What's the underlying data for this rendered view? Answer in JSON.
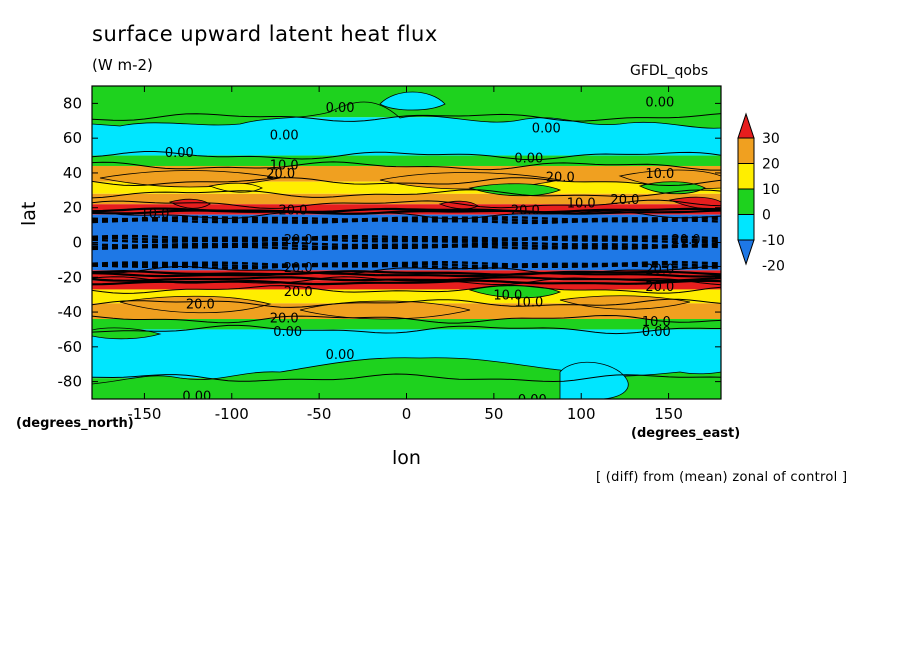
{
  "chart_data": {
    "type": "contour",
    "title": "surface upward latent heat flux",
    "units": "(W m-2)",
    "model": "GFDL_qobs",
    "xlabel": "lon",
    "ylabel": "lat",
    "x_unit_label": "(degrees_east)",
    "y_unit_label": "(degrees_north)",
    "note": "[ (diff) from (mean) zonal of control ]",
    "xlim": [
      -180,
      180
    ],
    "ylim": [
      -90,
      90
    ],
    "x_ticks": [
      -150,
      -100,
      -50,
      0,
      50,
      100,
      150
    ],
    "x_tick_labels": [
      "-150",
      "-100",
      "-50",
      "0",
      "50",
      "100",
      "150"
    ],
    "y_ticks": [
      80,
      60,
      40,
      20,
      0,
      -20,
      -40,
      -60,
      -80
    ],
    "y_tick_labels": [
      "80",
      "60",
      "40",
      "20",
      "0",
      "-20",
      "-40",
      "-60",
      "-80"
    ],
    "colorbar": {
      "levels": [
        -20,
        -10,
        0,
        10,
        20,
        30
      ],
      "level_labels": [
        "30",
        "20",
        "10",
        "0",
        "-10",
        "-20"
      ],
      "colors": [
        "#1e78e6",
        "#00e6ff",
        "#1ed21e",
        "#ffee00",
        "#f0a020",
        "#e61e1e"
      ]
    },
    "zonal_bands": [
      {
        "lat_min": 72,
        "lat_max": 90,
        "value_class": 0
      },
      {
        "lat_min": 50,
        "lat_max": 72,
        "value_class": -10
      },
      {
        "lat_min": 44,
        "lat_max": 50,
        "value_class": 0
      },
      {
        "lat_min": 35,
        "lat_max": 44,
        "value_class": 20
      },
      {
        "lat_min": 28,
        "lat_max": 35,
        "value_class": 10
      },
      {
        "lat_min": 22,
        "lat_max": 28,
        "value_class": 20
      },
      {
        "lat_min": 16,
        "lat_max": 22,
        "value_class": 30
      },
      {
        "lat_min": -16,
        "lat_max": 16,
        "value_class": -20
      },
      {
        "lat_min": -22,
        "lat_max": -16,
        "value_class": 30
      },
      {
        "lat_min": -27,
        "lat_max": -22,
        "value_class": 30
      },
      {
        "lat_min": -35,
        "lat_max": -27,
        "value_class": 10
      },
      {
        "lat_min": -44,
        "lat_max": -35,
        "value_class": 20
      },
      {
        "lat_min": -50,
        "lat_max": -44,
        "value_class": 0
      },
      {
        "lat_min": -78,
        "lat_max": -50,
        "value_class": -10
      },
      {
        "lat_min": -90,
        "lat_max": -78,
        "value_class": 0
      }
    ],
    "contour_labels": [
      {
        "text": "0.00",
        "lon": -38,
        "lat": 78
      },
      {
        "text": "0.00",
        "lon": 145,
        "lat": 81
      },
      {
        "text": "0.00",
        "lon": 80,
        "lat": 66
      },
      {
        "text": "0.00",
        "lon": -70,
        "lat": 62
      },
      {
        "text": "0.00",
        "lon": -130,
        "lat": 52
      },
      {
        "text": "0.00",
        "lon": 70,
        "lat": 49
      },
      {
        "text": "10.0",
        "lon": -70,
        "lat": 45
      },
      {
        "text": "20.0",
        "lon": -72,
        "lat": 40
      },
      {
        "text": "20.0",
        "lon": 88,
        "lat": 38
      },
      {
        "text": "10.0",
        "lon": 145,
        "lat": 40
      },
      {
        "text": "20.0",
        "lon": 125,
        "lat": 25
      },
      {
        "text": "10.0",
        "lon": 100,
        "lat": 23
      },
      {
        "text": "20.0",
        "lon": 68,
        "lat": 19
      },
      {
        "text": "10.0",
        "lon": -144,
        "lat": 17
      },
      {
        "text": "20.0",
        "lon": -65,
        "lat": 19
      },
      {
        "text": "20.0",
        "lon": -62,
        "lat": 2
      },
      {
        "text": "20.0",
        "lon": 160,
        "lat": 2
      },
      {
        "text": "20.0",
        "lon": -62,
        "lat": -14
      },
      {
        "text": "20.0",
        "lon": 145,
        "lat": -15
      },
      {
        "text": "20.0",
        "lon": -62,
        "lat": -28
      },
      {
        "text": "20.0",
        "lon": 145,
        "lat": -25
      },
      {
        "text": "10.0",
        "lon": 58,
        "lat": -30
      },
      {
        "text": "10.0",
        "lon": 70,
        "lat": -34
      },
      {
        "text": "20.0",
        "lon": -118,
        "lat": -35
      },
      {
        "text": "20.0",
        "lon": -70,
        "lat": -43
      },
      {
        "text": "0.00",
        "lon": -68,
        "lat": -51
      },
      {
        "text": "10.0",
        "lon": 143,
        "lat": -45
      },
      {
        "text": "0.00",
        "lon": 143,
        "lat": -51
      },
      {
        "text": "0.00",
        "lon": -38,
        "lat": -64
      },
      {
        "text": "0.00",
        "lon": -120,
        "lat": -88
      },
      {
        "text": "0.00",
        "lon": 72,
        "lat": -90
      }
    ]
  }
}
